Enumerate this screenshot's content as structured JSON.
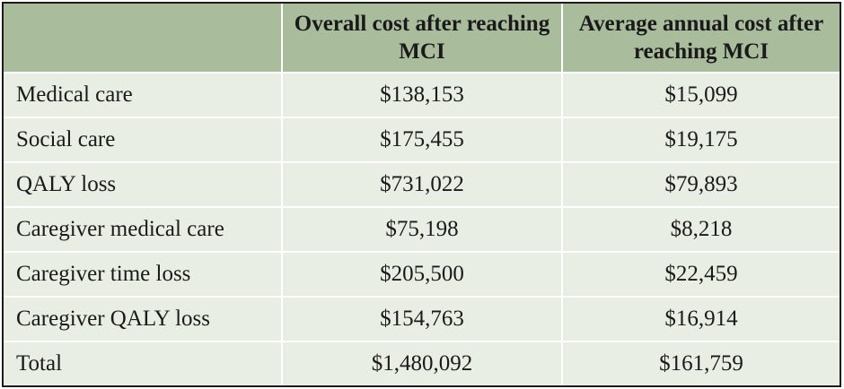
{
  "table": {
    "headers": [
      "",
      "Overall cost after reaching MCI",
      "Average annual cost after reaching MCI"
    ],
    "rows": [
      [
        "Medical care",
        "$138,153",
        "$15,099"
      ],
      [
        "Social care",
        "$175,455",
        "$19,175"
      ],
      [
        "QALY loss",
        "$731,022",
        "$79,893"
      ],
      [
        "Caregiver medical care",
        "$75,198",
        "$8,218"
      ],
      [
        "Caregiver time loss",
        "$205,500",
        "$22,459"
      ],
      [
        "Caregiver QALY loss",
        "$154,763",
        "$16,914"
      ],
      [
        "Total",
        "$1,480,092",
        "$161,759"
      ]
    ]
  },
  "colors": {
    "header_bg": "#a9bd9c",
    "body_bg": "#e9eee4",
    "grid_lines": "#ffffff",
    "outer_border": "#1c1c1c"
  }
}
